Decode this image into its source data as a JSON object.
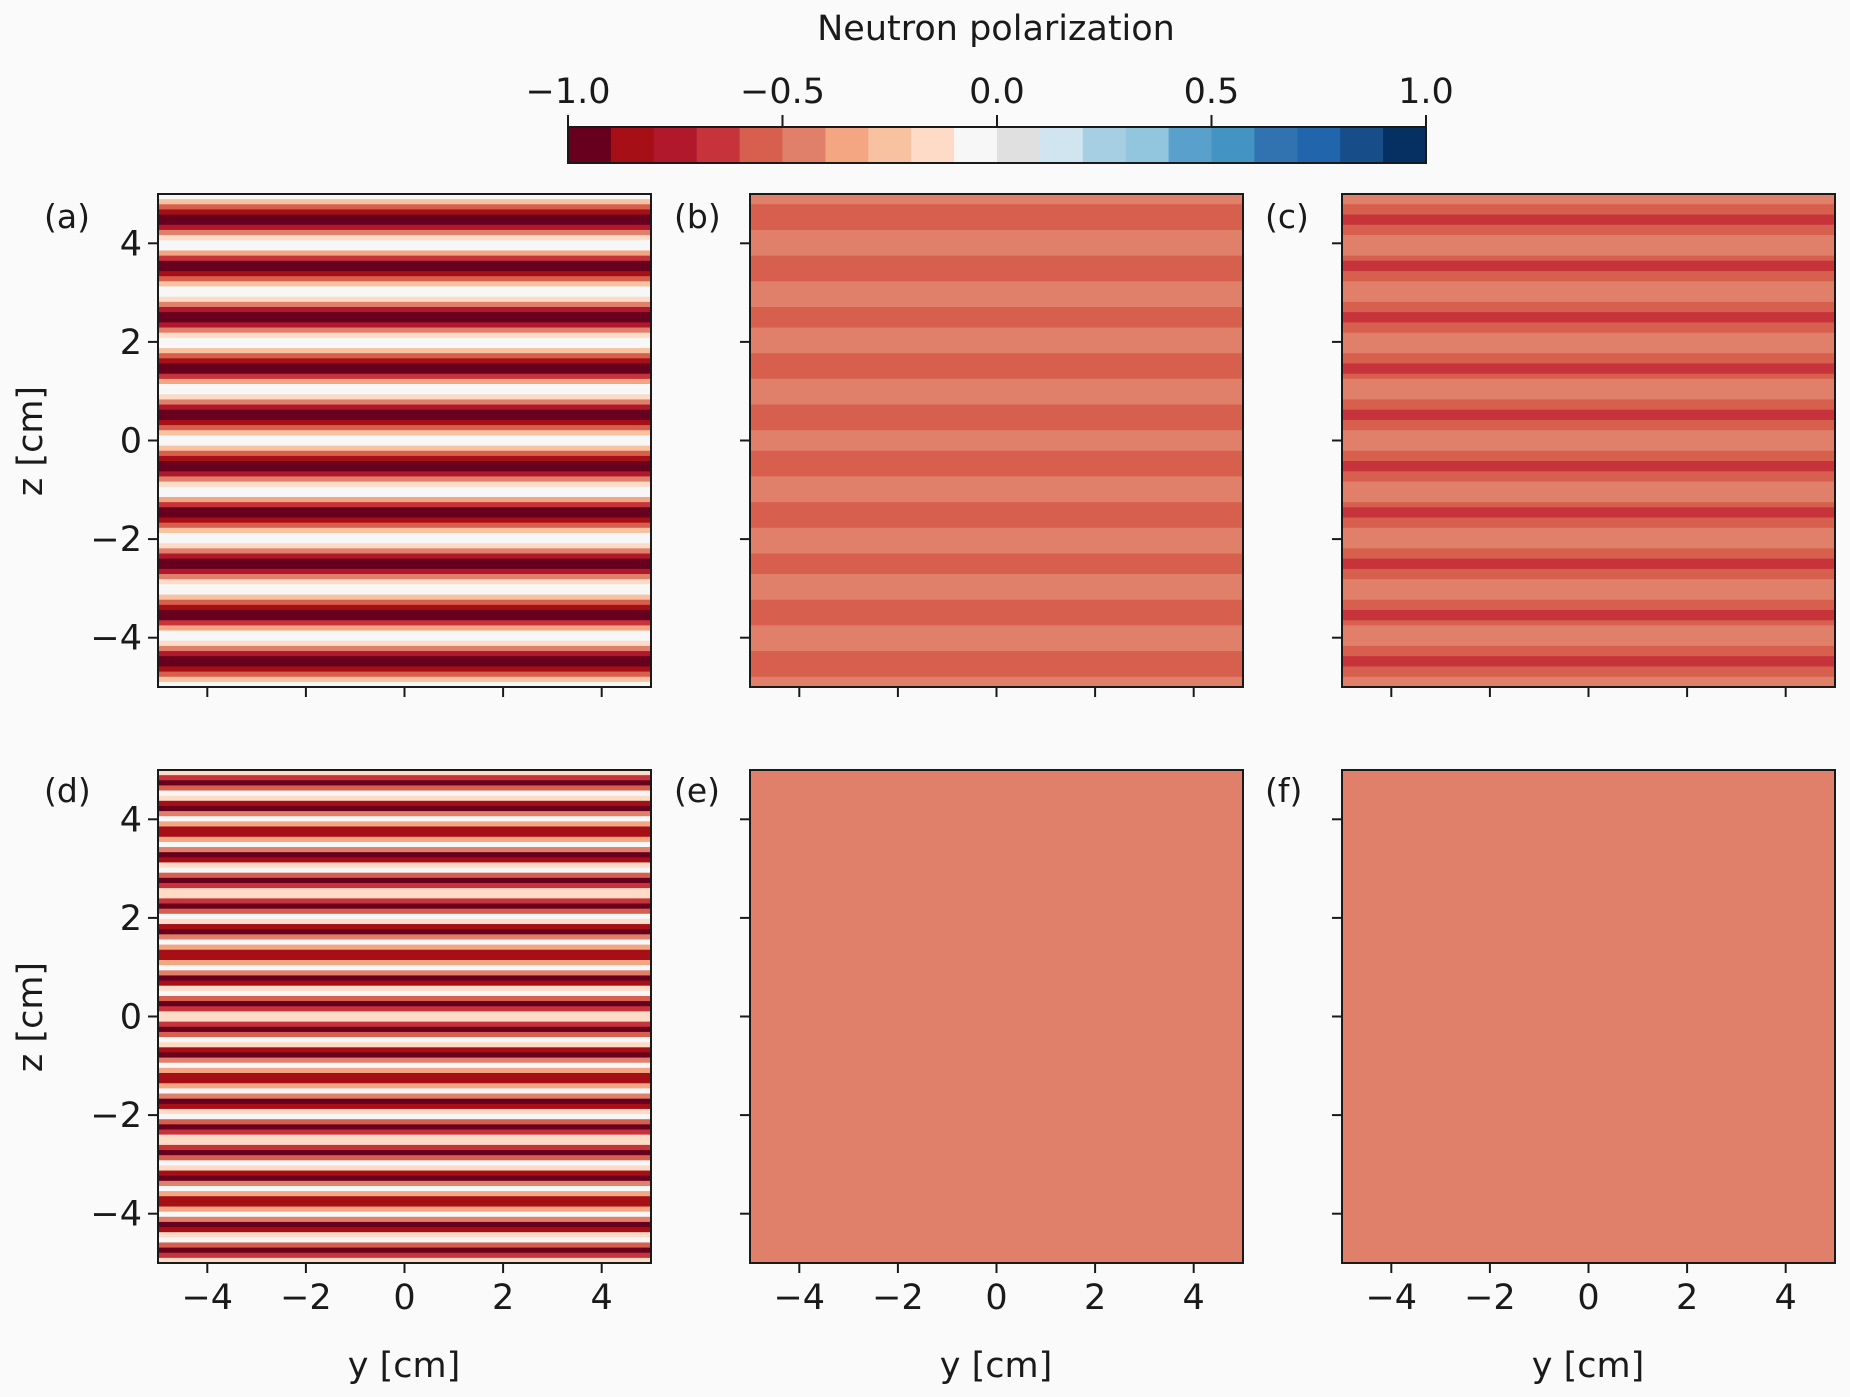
{
  "chart_data": {
    "type": "heatmap",
    "colorbar": {
      "label": "Neutron polarization",
      "range": [
        -1.0,
        1.0
      ],
      "ticks": [
        -1.0,
        -0.5,
        0.0,
        0.5,
        1.0
      ],
      "tick_labels": [
        "−1.0",
        "−0.5",
        "0.0",
        "0.5",
        "1.0"
      ],
      "colormap": "RdBu discrete",
      "colors": [
        "#67001f",
        "#a50f15",
        "#b2182b",
        "#c6333a",
        "#d6604d",
        "#e0806b",
        "#f4a582",
        "#f8c2a0",
        "#fddbc7",
        "#f7f7f7",
        "#e0e0e0",
        "#d1e5f0",
        "#a6cfe3",
        "#92c5de",
        "#5aa0cc",
        "#4393c3",
        "#3173b0",
        "#2166ac",
        "#174d88",
        "#053061"
      ]
    },
    "xlabel": "y [cm]",
    "ylabel": "z [cm]",
    "xlim": [
      -5,
      5
    ],
    "ylim": [
      -5,
      5
    ],
    "xticks": [
      -4,
      -2,
      0,
      2,
      4
    ],
    "yticks": [
      -4,
      -2,
      0,
      2,
      4
    ],
    "tick_labels": [
      "−4",
      "−2",
      "0",
      "2",
      "4"
    ],
    "panels": [
      {
        "label": "(a)",
        "row": 0,
        "col": 0,
        "stripes": 20,
        "pol_min": -1.0,
        "pol_max": 0.0
      },
      {
        "label": "(b)",
        "row": 0,
        "col": 1,
        "stripes": 20,
        "pol_min": -0.55,
        "pol_max": -0.45
      },
      {
        "label": "(c)",
        "row": 0,
        "col": 2,
        "stripes": 20,
        "pol_min": -0.62,
        "pol_max": -0.42
      },
      {
        "label": "(d)",
        "row": 1,
        "col": 0,
        "stripes": 40,
        "pol_min": -1.0,
        "pol_max": 0.0
      },
      {
        "label": "(e)",
        "row": 1,
        "col": 1,
        "stripes": 0,
        "pol_min": -0.5,
        "pol_max": -0.5
      },
      {
        "label": "(f)",
        "row": 1,
        "col": 2,
        "stripes": 0,
        "pol_min": -0.5,
        "pol_max": -0.5
      }
    ]
  }
}
